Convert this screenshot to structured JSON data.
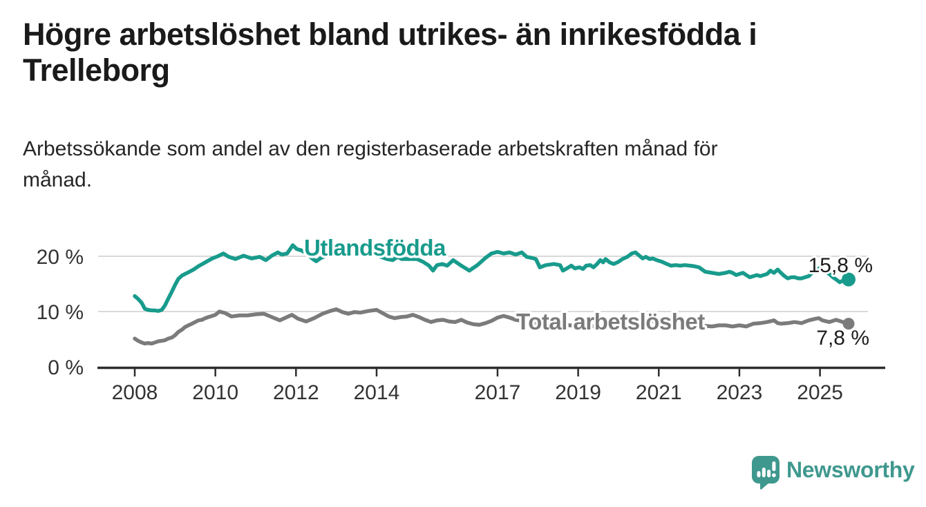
{
  "header": {
    "title": "Högre arbetslöshet bland utrikes- än inrikesfödda i Trelleborg",
    "title_lines": [
      "Högre arbetslöshet bland utrikes- än inrikesfödda i",
      "Trelleborg"
    ],
    "subtitle": "Arbetssökande som andel av den registerbaserade arbetskraften månad för månad.",
    "subtitle_lines": [
      "Arbetssökande som andel av den registerbaserade arbetskraften månad för",
      "månad."
    ]
  },
  "footer": {
    "brand": "Newsworthy",
    "logo_icon": "speech-bubble-bar-chart-icon"
  },
  "colors": {
    "utlandsfodda_teal": "#189b8c",
    "total_gray": "#7b7b7b",
    "brand_teal": "#3f988e",
    "axis_text": "#333333",
    "gridline": "#d9d9d9",
    "axis_line": "#2d2d2d",
    "value_label": "#1d1d1d"
  },
  "chart_data": {
    "type": "line",
    "title": "Högre arbetslöshet bland utrikes- än inrikesfödda i Trelleborg",
    "subtitle": "Arbetssökande som andel av den registerbaserade arbetskraften månad för månad.",
    "unit": "%",
    "grid": "horizontal-only",
    "legend_position": "inline-on-lines",
    "x_range": [
      2007.1,
      2026.6
    ],
    "ylim": [
      0,
      25
    ],
    "x_ticks": [
      2008,
      2010,
      2012,
      2014,
      2017,
      2019,
      2021,
      2023,
      2025
    ],
    "y_ticks": [
      {
        "value": 0,
        "label": "0 %"
      },
      {
        "value": 10,
        "label": "10 %"
      },
      {
        "value": 20,
        "label": "20 %"
      }
    ],
    "series": [
      {
        "name": "Utlandsfödda",
        "color": "#189b8c",
        "end_label": "15,8 %",
        "end_value": 15.8,
        "points": [
          [
            2008.0,
            12.8
          ],
          [
            2008.08,
            12.3
          ],
          [
            2008.17,
            11.6
          ],
          [
            2008.25,
            10.5
          ],
          [
            2008.33,
            10.3
          ],
          [
            2008.42,
            10.2
          ],
          [
            2008.5,
            10.2
          ],
          [
            2008.58,
            10.1
          ],
          [
            2008.67,
            10.3
          ],
          [
            2008.75,
            11.1
          ],
          [
            2008.83,
            12.3
          ],
          [
            2008.92,
            13.6
          ],
          [
            2009.0,
            14.8
          ],
          [
            2009.08,
            15.9
          ],
          [
            2009.17,
            16.5
          ],
          [
            2009.33,
            17.1
          ],
          [
            2009.46,
            17.6
          ],
          [
            2009.58,
            18.2
          ],
          [
            2009.75,
            18.9
          ],
          [
            2009.92,
            19.6
          ],
          [
            2010.06,
            20.0
          ],
          [
            2010.2,
            20.5
          ],
          [
            2010.33,
            19.9
          ],
          [
            2010.5,
            19.5
          ],
          [
            2010.7,
            20.1
          ],
          [
            2010.9,
            19.6
          ],
          [
            2011.1,
            19.9
          ],
          [
            2011.25,
            19.3
          ],
          [
            2011.4,
            20.1
          ],
          [
            2011.55,
            20.7
          ],
          [
            2011.65,
            20.3
          ],
          [
            2011.78,
            20.5
          ],
          [
            2011.92,
            22.0
          ],
          [
            2012.02,
            21.3
          ],
          [
            2012.12,
            21.1
          ],
          [
            2012.25,
            20.6
          ],
          [
            2012.4,
            19.6
          ],
          [
            2012.5,
            19.1
          ],
          [
            2012.62,
            19.7
          ],
          [
            2012.8,
            20.2
          ],
          [
            2013.0,
            20.7
          ],
          [
            2013.2,
            20.4
          ],
          [
            2013.4,
            20.7
          ],
          [
            2013.6,
            20.4
          ],
          [
            2013.8,
            20.6
          ],
          [
            2013.95,
            20.3
          ],
          [
            2014.1,
            19.9
          ],
          [
            2014.26,
            19.5
          ],
          [
            2014.4,
            19.3
          ],
          [
            2014.52,
            19.9
          ],
          [
            2014.62,
            19.5
          ],
          [
            2014.8,
            19.5
          ],
          [
            2015.0,
            19.5
          ],
          [
            2015.15,
            19.0
          ],
          [
            2015.3,
            18.3
          ],
          [
            2015.4,
            17.4
          ],
          [
            2015.5,
            18.4
          ],
          [
            2015.63,
            18.6
          ],
          [
            2015.75,
            18.3
          ],
          [
            2015.9,
            19.3
          ],
          [
            2016.1,
            18.3
          ],
          [
            2016.3,
            17.4
          ],
          [
            2016.5,
            18.4
          ],
          [
            2016.7,
            19.7
          ],
          [
            2016.85,
            20.5
          ],
          [
            2017.0,
            20.8
          ],
          [
            2017.15,
            20.5
          ],
          [
            2017.3,
            20.7
          ],
          [
            2017.45,
            20.3
          ],
          [
            2017.6,
            20.7
          ],
          [
            2017.72,
            19.9
          ],
          [
            2017.85,
            19.7
          ],
          [
            2017.95,
            19.5
          ],
          [
            2018.05,
            18.0
          ],
          [
            2018.2,
            18.4
          ],
          [
            2018.4,
            18.6
          ],
          [
            2018.55,
            18.4
          ],
          [
            2018.62,
            17.4
          ],
          [
            2018.72,
            17.8
          ],
          [
            2018.83,
            18.3
          ],
          [
            2018.92,
            17.8
          ],
          [
            2019.03,
            18.0
          ],
          [
            2019.12,
            17.7
          ],
          [
            2019.2,
            18.3
          ],
          [
            2019.3,
            18.4
          ],
          [
            2019.38,
            18.0
          ],
          [
            2019.47,
            18.6
          ],
          [
            2019.55,
            19.3
          ],
          [
            2019.62,
            18.9
          ],
          [
            2019.68,
            19.5
          ],
          [
            2019.78,
            18.9
          ],
          [
            2019.88,
            18.6
          ],
          [
            2020.0,
            19.0
          ],
          [
            2020.1,
            19.5
          ],
          [
            2020.22,
            19.9
          ],
          [
            2020.33,
            20.5
          ],
          [
            2020.42,
            20.7
          ],
          [
            2020.52,
            20.1
          ],
          [
            2020.6,
            19.6
          ],
          [
            2020.68,
            19.9
          ],
          [
            2020.77,
            19.5
          ],
          [
            2020.85,
            19.6
          ],
          [
            2020.95,
            19.3
          ],
          [
            2021.08,
            19.0
          ],
          [
            2021.2,
            18.6
          ],
          [
            2021.3,
            18.3
          ],
          [
            2021.42,
            18.4
          ],
          [
            2021.53,
            18.3
          ],
          [
            2021.65,
            18.4
          ],
          [
            2021.77,
            18.3
          ],
          [
            2021.88,
            18.2
          ],
          [
            2022.0,
            18.0
          ],
          [
            2022.15,
            17.2
          ],
          [
            2022.32,
            17.0
          ],
          [
            2022.49,
            16.8
          ],
          [
            2022.66,
            17.0
          ],
          [
            2022.75,
            17.2
          ],
          [
            2022.83,
            17.0
          ],
          [
            2022.92,
            16.6
          ],
          [
            2023.0,
            16.8
          ],
          [
            2023.09,
            17.0
          ],
          [
            2023.17,
            16.6
          ],
          [
            2023.26,
            16.2
          ],
          [
            2023.35,
            16.4
          ],
          [
            2023.43,
            16.6
          ],
          [
            2023.52,
            16.4
          ],
          [
            2023.6,
            16.6
          ],
          [
            2023.69,
            16.8
          ],
          [
            2023.77,
            17.4
          ],
          [
            2023.86,
            17.0
          ],
          [
            2023.95,
            17.6
          ],
          [
            2024.03,
            17.0
          ],
          [
            2024.12,
            16.4
          ],
          [
            2024.2,
            16.0
          ],
          [
            2024.29,
            16.2
          ],
          [
            2024.37,
            16.2
          ],
          [
            2024.46,
            16.0
          ],
          [
            2024.54,
            16.0
          ],
          [
            2024.63,
            16.2
          ],
          [
            2024.72,
            16.4
          ],
          [
            2024.8,
            17.0
          ],
          [
            2024.89,
            17.4
          ],
          [
            2024.97,
            17.8
          ],
          [
            2025.06,
            17.6
          ],
          [
            2025.14,
            17.2
          ],
          [
            2025.23,
            16.8
          ],
          [
            2025.32,
            16.2
          ],
          [
            2025.4,
            15.8
          ],
          [
            2025.49,
            15.3
          ],
          [
            2025.57,
            15.6
          ],
          [
            2025.71,
            15.8
          ]
        ]
      },
      {
        "name": "Total arbetslöshet",
        "color": "#7b7b7b",
        "end_label": "7,8 %",
        "end_value": 7.8,
        "points": [
          [
            2008.0,
            5.1
          ],
          [
            2008.08,
            4.7
          ],
          [
            2008.17,
            4.4
          ],
          [
            2008.25,
            4.2
          ],
          [
            2008.33,
            4.3
          ],
          [
            2008.42,
            4.2
          ],
          [
            2008.5,
            4.4
          ],
          [
            2008.58,
            4.6
          ],
          [
            2008.67,
            4.7
          ],
          [
            2008.75,
            4.8
          ],
          [
            2008.83,
            5.1
          ],
          [
            2008.92,
            5.3
          ],
          [
            2009.0,
            5.7
          ],
          [
            2009.08,
            6.3
          ],
          [
            2009.17,
            6.7
          ],
          [
            2009.25,
            7.2
          ],
          [
            2009.33,
            7.5
          ],
          [
            2009.42,
            7.8
          ],
          [
            2009.5,
            8.1
          ],
          [
            2009.58,
            8.4
          ],
          [
            2009.67,
            8.5
          ],
          [
            2009.75,
            8.8
          ],
          [
            2009.83,
            9.0
          ],
          [
            2009.92,
            9.2
          ],
          [
            2010.0,
            9.4
          ],
          [
            2010.1,
            10.0
          ],
          [
            2010.25,
            9.7
          ],
          [
            2010.4,
            9.1
          ],
          [
            2010.6,
            9.3
          ],
          [
            2010.8,
            9.3
          ],
          [
            2011.0,
            9.5
          ],
          [
            2011.2,
            9.6
          ],
          [
            2011.4,
            9.0
          ],
          [
            2011.6,
            8.4
          ],
          [
            2011.75,
            8.9
          ],
          [
            2011.9,
            9.4
          ],
          [
            2012.05,
            8.7
          ],
          [
            2012.25,
            8.2
          ],
          [
            2012.45,
            8.8
          ],
          [
            2012.66,
            9.6
          ],
          [
            2012.85,
            10.1
          ],
          [
            2013.0,
            10.4
          ],
          [
            2013.15,
            9.9
          ],
          [
            2013.3,
            9.6
          ],
          [
            2013.45,
            9.9
          ],
          [
            2013.6,
            9.8
          ],
          [
            2013.8,
            10.1
          ],
          [
            2014.0,
            10.3
          ],
          [
            2014.15,
            9.7
          ],
          [
            2014.3,
            9.1
          ],
          [
            2014.45,
            8.8
          ],
          [
            2014.6,
            9.0
          ],
          [
            2014.75,
            9.1
          ],
          [
            2014.9,
            9.4
          ],
          [
            2015.05,
            9.0
          ],
          [
            2015.2,
            8.5
          ],
          [
            2015.35,
            8.1
          ],
          [
            2015.5,
            8.4
          ],
          [
            2015.65,
            8.5
          ],
          [
            2015.8,
            8.2
          ],
          [
            2015.95,
            8.1
          ],
          [
            2016.1,
            8.5
          ],
          [
            2016.25,
            8.0
          ],
          [
            2016.4,
            7.7
          ],
          [
            2016.55,
            7.6
          ],
          [
            2016.7,
            7.9
          ],
          [
            2016.85,
            8.3
          ],
          [
            2017.0,
            8.9
          ],
          [
            2017.15,
            9.2
          ],
          [
            2017.3,
            8.9
          ],
          [
            2017.45,
            8.5
          ],
          [
            2017.7,
            8.2
          ],
          [
            2018.0,
            7.9
          ],
          [
            2018.4,
            7.7
          ],
          [
            2018.8,
            7.5
          ],
          [
            2019.2,
            7.3
          ],
          [
            2019.6,
            7.4
          ],
          [
            2020.0,
            7.9
          ],
          [
            2020.4,
            8.5
          ],
          [
            2020.8,
            8.3
          ],
          [
            2021.2,
            7.9
          ],
          [
            2021.6,
            7.7
          ],
          [
            2021.95,
            7.8
          ],
          [
            2022.15,
            7.4
          ],
          [
            2022.32,
            7.3
          ],
          [
            2022.49,
            7.5
          ],
          [
            2022.66,
            7.5
          ],
          [
            2022.83,
            7.3
          ],
          [
            2023.0,
            7.5
          ],
          [
            2023.17,
            7.3
          ],
          [
            2023.35,
            7.8
          ],
          [
            2023.52,
            7.9
          ],
          [
            2023.69,
            8.1
          ],
          [
            2023.86,
            8.4
          ],
          [
            2023.95,
            7.9
          ],
          [
            2024.03,
            7.8
          ],
          [
            2024.2,
            7.9
          ],
          [
            2024.37,
            8.1
          ],
          [
            2024.54,
            7.9
          ],
          [
            2024.72,
            8.4
          ],
          [
            2024.89,
            8.7
          ],
          [
            2024.97,
            8.8
          ],
          [
            2025.06,
            8.4
          ],
          [
            2025.23,
            8.1
          ],
          [
            2025.4,
            8.5
          ],
          [
            2025.57,
            8.1
          ],
          [
            2025.71,
            7.8
          ]
        ]
      }
    ]
  }
}
